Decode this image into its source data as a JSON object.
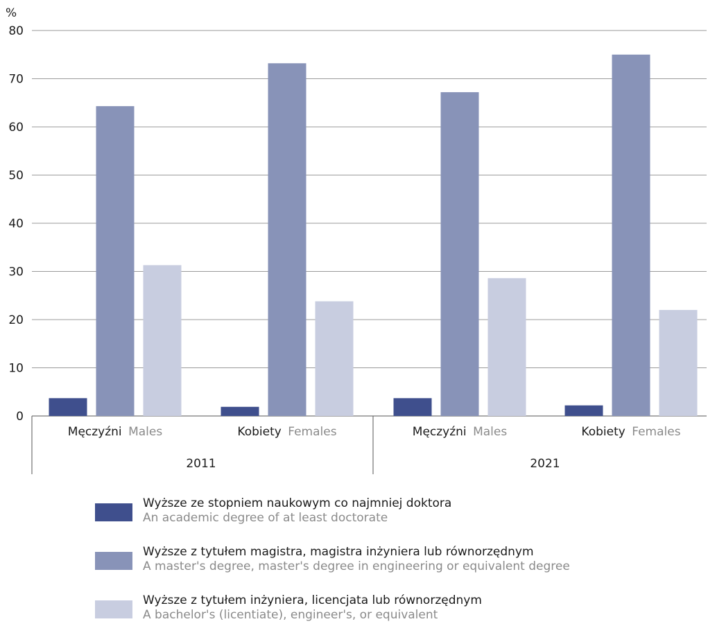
{
  "chart_data": {
    "type": "bar",
    "ylabel": "%",
    "ylim": [
      0,
      80
    ],
    "yticks": [
      0,
      10,
      20,
      30,
      40,
      50,
      60,
      70,
      80
    ],
    "grid": true,
    "groups": [
      {
        "year": "2011",
        "categories": [
          {
            "label_pl": "Męczyźni",
            "label_en": "Males"
          },
          {
            "label_pl": "Kobiety",
            "label_en": "Females"
          }
        ]
      },
      {
        "year": "2021",
        "categories": [
          {
            "label_pl": "Męczyźni",
            "label_en": "Males"
          },
          {
            "label_pl": "Kobiety",
            "label_en": "Females"
          }
        ]
      }
    ],
    "series": [
      {
        "name_pl": "Wyższe ze stopniem naukowym co najmniej doktora",
        "name_en": "An academic degree of at least doctorate",
        "color": "#3f4f8d",
        "values": [
          3.7,
          1.9,
          3.7,
          2.2
        ]
      },
      {
        "name_pl": "Wyższe z tytułem magistra, magistra inżyniera lub równorzędnym",
        "name_en": "A master's degree, master's degree in engineering or equivalent degree",
        "color": "#8893b8",
        "values": [
          64.3,
          73.2,
          67.2,
          75.0
        ]
      },
      {
        "name_pl": "Wyższe z tytułem inżyniera, licencjata lub równorzędnym",
        "name_en": "A bachelor's (licentiate), engineer's, or equivalent",
        "color": "#c8cde0",
        "values": [
          31.3,
          23.8,
          28.6,
          22.0
        ]
      }
    ],
    "legend_position": "bottom"
  }
}
